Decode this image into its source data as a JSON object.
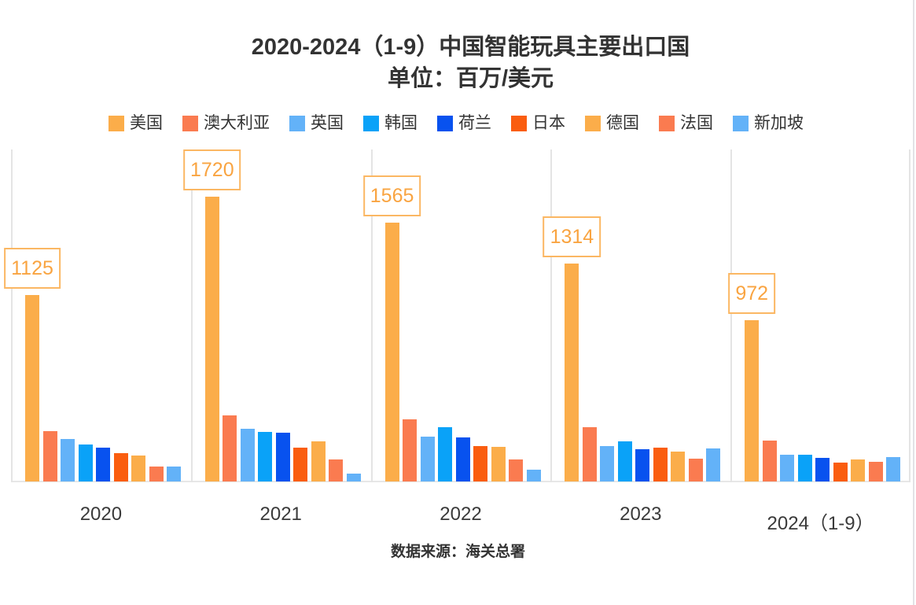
{
  "chart_data": {
    "type": "bar",
    "title": "2020-2024（1-9）中国智能玩具主要出口国",
    "subtitle": "单位：百万/美元",
    "source": "数据来源：海关总署",
    "categories": [
      "2020",
      "2021",
      "2022",
      "2023",
      "2024（1-9）"
    ],
    "series": [
      {
        "name": "美国",
        "color": "#FBAD4A",
        "values": [
          1125,
          1720,
          1565,
          1314,
          972
        ],
        "labeled": true
      },
      {
        "name": "澳大利亚",
        "color": "#FA7B50",
        "values": [
          305,
          400,
          374,
          327,
          248
        ]
      },
      {
        "name": "英国",
        "color": "#63B2F8",
        "values": [
          255,
          317,
          272,
          214,
          161
        ]
      },
      {
        "name": "韩国",
        "color": "#0AA2F8",
        "values": [
          225,
          299,
          326,
          244,
          161
        ]
      },
      {
        "name": "荷兰",
        "color": "#0852EF",
        "values": [
          204,
          296,
          266,
          194,
          143
        ]
      },
      {
        "name": "日本",
        "color": "#FA5D0F",
        "values": [
          172,
          204,
          214,
          205,
          116
        ]
      },
      {
        "name": "德国",
        "color": "#FBAD4A",
        "values": [
          158,
          242,
          208,
          182,
          132
        ]
      },
      {
        "name": "法国",
        "color": "#FA7B50",
        "values": [
          92,
          131,
          133,
          139,
          118
        ]
      },
      {
        "name": "新加坡",
        "color": "#63B2F8",
        "values": [
          89,
          49,
          73,
          198,
          148
        ]
      }
    ],
    "value_labels_series": "美国",
    "value_labels": [
      "1125",
      "1720",
      "1565",
      "1314",
      "972"
    ],
    "ylim": [
      0,
      2010
    ],
    "grid": "vertical-only",
    "legend_position": "top",
    "accent_color": "#F9A441",
    "label_box_border_color": "#FBB763",
    "gridline_color": "#E4E4E4",
    "text_color": "#333333"
  }
}
